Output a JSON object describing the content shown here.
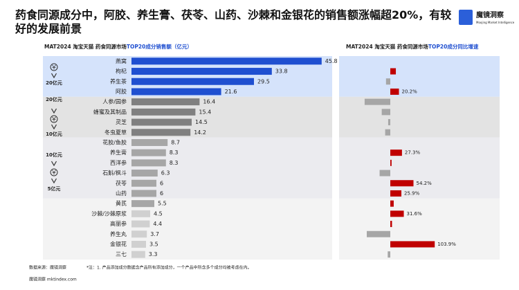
{
  "header": {
    "title": "药食同源成分中，阿胶、养生膏、茯苓、山药、沙棘和金银花的销售额涨幅超20%，有较好的发展前景",
    "logo_name": "魔镜洞察",
    "logo_subtitle": "Moojing Market Intelligence"
  },
  "tiers": [
    [
      "20亿元"
    ],
    [
      "20亿元",
      "10亿元"
    ],
    [
      "10亿元",
      "5亿元"
    ]
  ],
  "chart_data": [
    {
      "type": "bar",
      "orientation": "horizontal",
      "title_prefix": "MAT2024 淘宝天猫 药食同源市场",
      "title_highlight": "TOP20成分销售额（亿元）",
      "categories": [
        "燕窝",
        "枸杞",
        "养生茶",
        "阿胶",
        "人参/园参",
        "蜂蜜及其制品",
        "灵芝",
        "冬虫夏草",
        "花胶/鱼胶",
        "养生膏",
        "西洋参",
        "石斛/枫斗",
        "茯苓",
        "山药",
        "黄芪",
        "沙棘/沙棘原浆",
        "高丽参",
        "养生丸",
        "金银花",
        "三七"
      ],
      "values": [
        45.8,
        33.8,
        29.5,
        21.6,
        16.4,
        15.4,
        14.5,
        14.2,
        8.7,
        8.3,
        8.3,
        6.3,
        6.0,
        6.0,
        5.5,
        4.5,
        4.4,
        3.7,
        3.5,
        3.3
      ],
      "colors": [
        "#1f4fd0",
        "#1f4fd0",
        "#1f4fd0",
        "#1f4fd0",
        "#808080",
        "#808080",
        "#808080",
        "#808080",
        "#a6a6a6",
        "#a6a6a6",
        "#a6a6a6",
        "#a6a6a6",
        "#a6a6a6",
        "#a6a6a6",
        "#a6a6a6",
        "#d0d0d0",
        "#d0d0d0",
        "#d0d0d0",
        "#d0d0d0",
        "#d0d0d0"
      ],
      "xlim": [
        0,
        50
      ]
    },
    {
      "type": "bar",
      "orientation": "horizontal",
      "title_prefix": "MAT2024 淘宝天猫 药食同源市场",
      "title_highlight": "TOP20成分同比增速",
      "values": [
        0,
        13,
        -10,
        20.2,
        -60,
        -20,
        -5,
        -12,
        0,
        27.3,
        3,
        -25,
        54.2,
        25.9,
        8,
        31.6,
        4,
        -55,
        103.9,
        -6
      ],
      "value_labels": [
        null,
        null,
        null,
        "20.2%",
        null,
        null,
        null,
        null,
        null,
        "27.3%",
        null,
        null,
        "54.2%",
        "25.9%",
        null,
        "31.6%",
        null,
        null,
        "103.9%",
        null
      ],
      "positive_color": "#c00000",
      "negative_color": "#a6a6a6",
      "xlim": [
        -110,
        110
      ]
    }
  ],
  "footer": {
    "source": "数据来源：魔镜洞察",
    "note": "*注：1. 产品添加成分数据含产品所有添加成分，一个产品中所含多个成分均被考虑在内。",
    "watermark": "魔镜洞察 mktindex.com"
  }
}
